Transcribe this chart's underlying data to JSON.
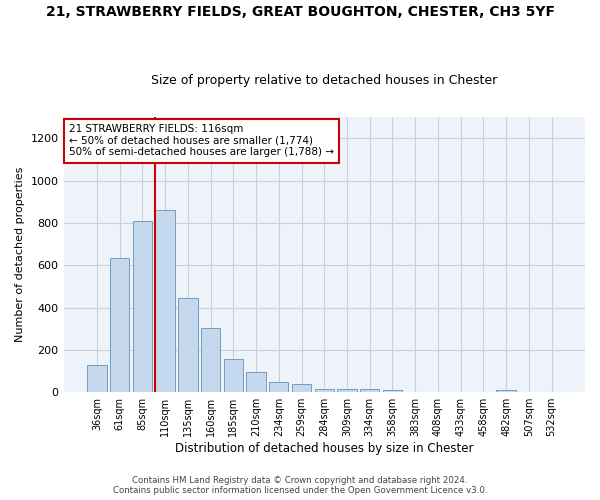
{
  "title": "21, STRAWBERRY FIELDS, GREAT BOUGHTON, CHESTER, CH3 5YF",
  "subtitle": "Size of property relative to detached houses in Chester",
  "xlabel": "Distribution of detached houses by size in Chester",
  "ylabel": "Number of detached properties",
  "bar_color": "#c5d8ee",
  "bar_edge_color": "#6e9ec2",
  "background_color": "#ffffff",
  "grid_color": "#c8d0dc",
  "annotation_line_color": "#cc0000",
  "annotation_box_color": "#cc0000",
  "categories": [
    "36sqm",
    "61sqm",
    "85sqm",
    "110sqm",
    "135sqm",
    "160sqm",
    "185sqm",
    "210sqm",
    "234sqm",
    "259sqm",
    "284sqm",
    "309sqm",
    "334sqm",
    "358sqm",
    "383sqm",
    "408sqm",
    "433sqm",
    "458sqm",
    "482sqm",
    "507sqm",
    "532sqm"
  ],
  "values": [
    130,
    635,
    810,
    860,
    445,
    305,
    158,
    95,
    50,
    38,
    15,
    17,
    17,
    10,
    0,
    0,
    0,
    0,
    10,
    0,
    0
  ],
  "vline_x_index": 3,
  "annotation_line1": "21 STRAWBERRY FIELDS: 116sqm",
  "annotation_line2": "← 50% of detached houses are smaller (1,774)",
  "annotation_line3": "50% of semi-detached houses are larger (1,788) →",
  "ylim": [
    0,
    1300
  ],
  "yticks": [
    0,
    200,
    400,
    600,
    800,
    1000,
    1200
  ],
  "footer_line1": "Contains HM Land Registry data © Crown copyright and database right 2024.",
  "footer_line2": "Contains public sector information licensed under the Open Government Licence v3.0."
}
